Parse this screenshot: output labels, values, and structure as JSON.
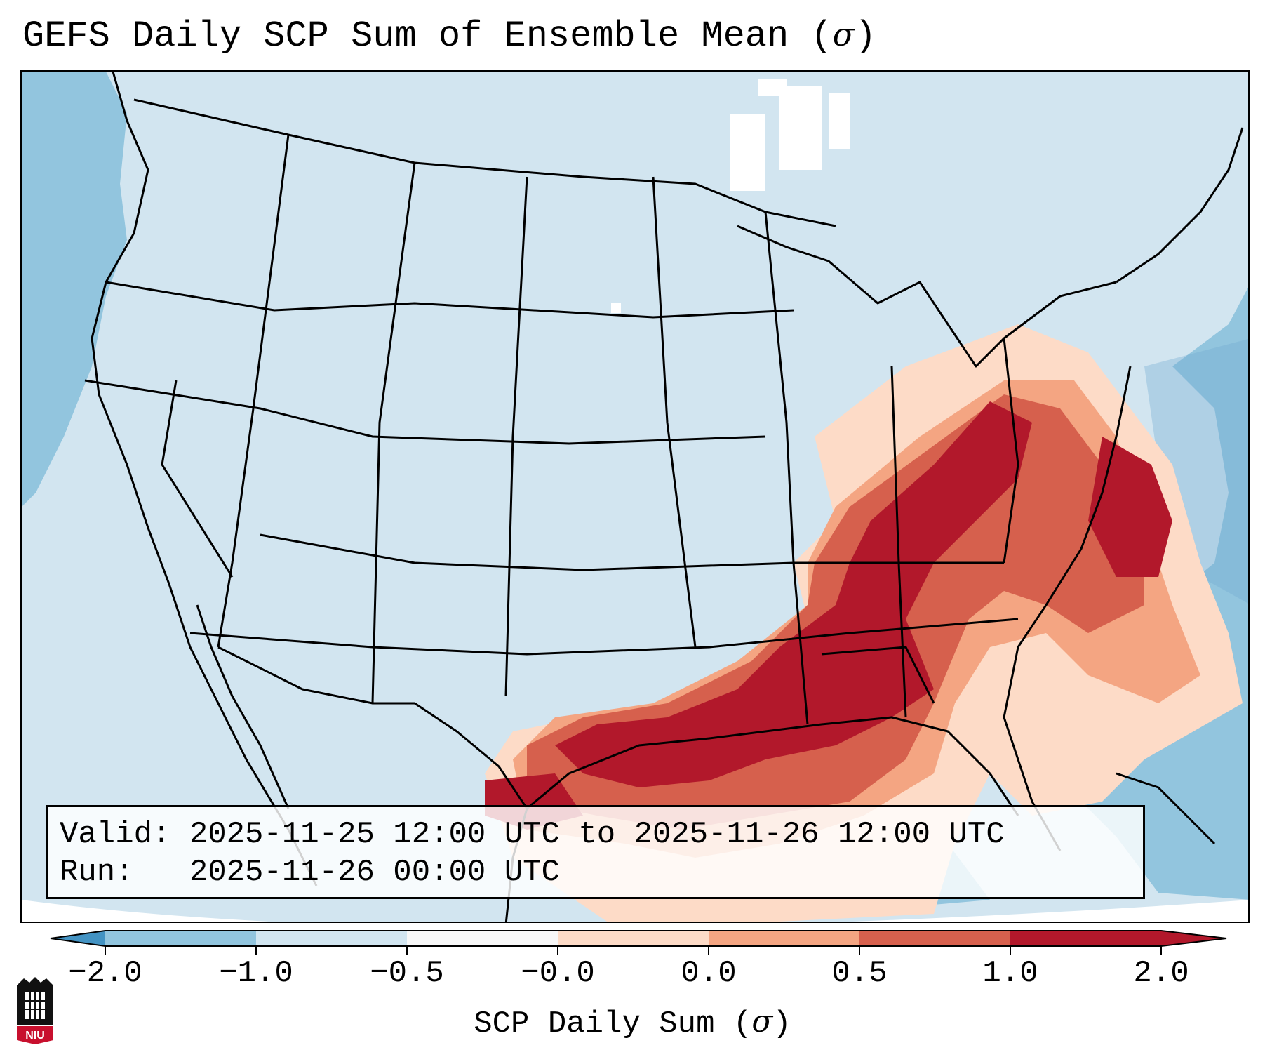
{
  "title": {
    "text": "GEFS Daily SCP Sum of Ensemble Mean",
    "unit_open": " (",
    "unit_symbol": "σ",
    "unit_close": ")"
  },
  "info": {
    "valid_label": "Valid:",
    "valid_value": "2025-11-25 12:00 UTC to 2025-11-26 12:00 UTC",
    "run_label": "Run:",
    "run_value": "2025-11-26 00:00 UTC"
  },
  "colorbar": {
    "label_text": "SCP Daily Sum",
    "label_unit_symbol": "σ",
    "ticks": [
      "−2.0",
      "−1.0",
      "−0.5",
      "−0.0",
      "0.0",
      "0.5",
      "1.0",
      "2.0"
    ],
    "colors": [
      "#4393c3",
      "#92c5de",
      "#d1e5f0",
      "#f7f7f7",
      "#fddbc7",
      "#f4a582",
      "#d6604d",
      "#b2182b"
    ],
    "extend": "both"
  },
  "logo": {
    "text": "NIU"
  },
  "map": {
    "projection": "Lambert Conformal (CONUS)",
    "background_color": "#d2e5f0",
    "outline_color": "#000000"
  }
}
